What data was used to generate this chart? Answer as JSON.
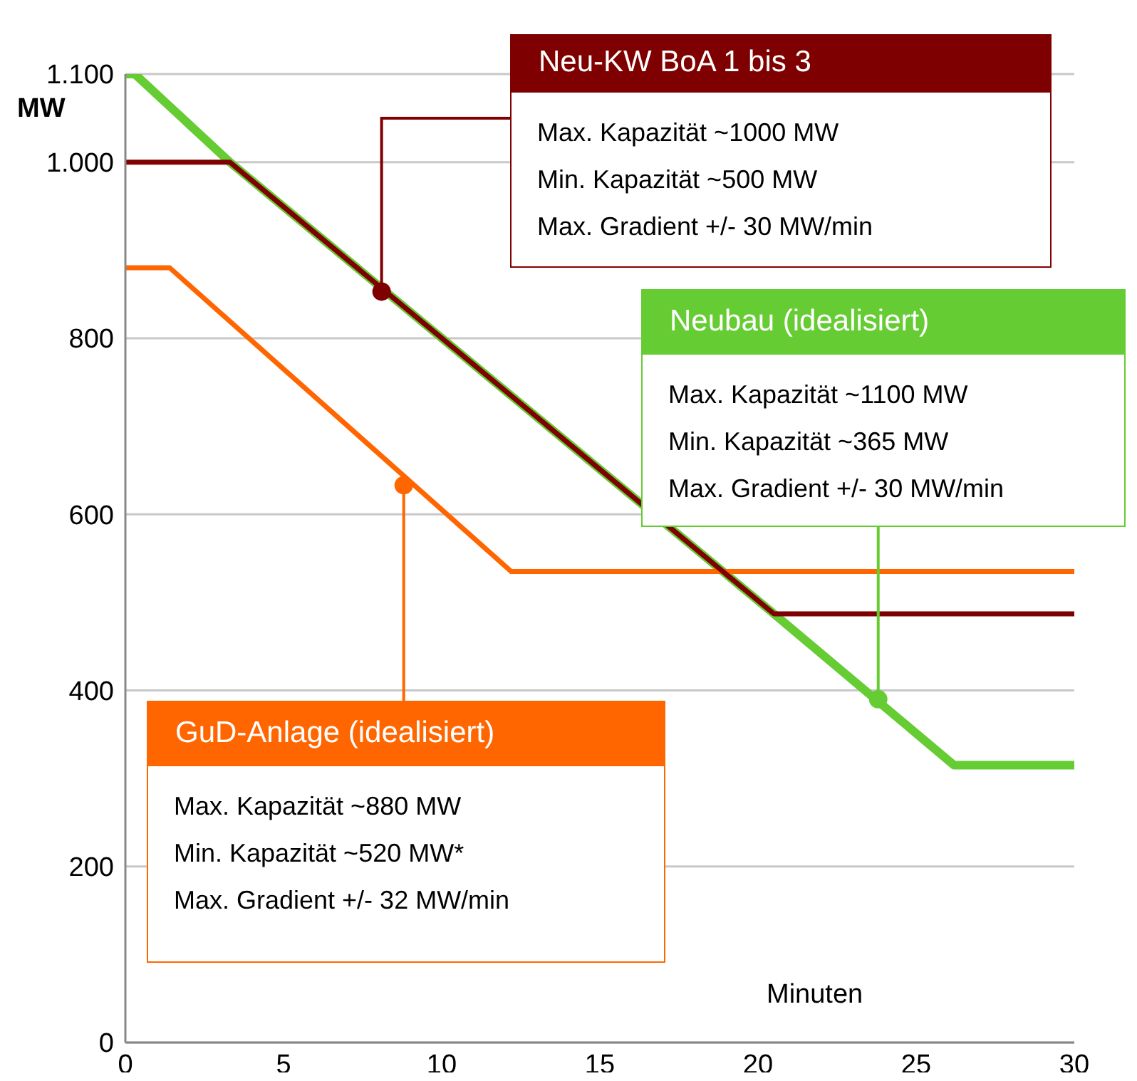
{
  "chart_data": {
    "type": "line",
    "xlabel": "Minuten",
    "ylabel": "MW",
    "xlim": [
      0,
      30
    ],
    "xticks": [
      0,
      5,
      10,
      15,
      20,
      25,
      30
    ],
    "ylim": [
      0,
      1100
    ],
    "yticks": [
      0,
      200,
      400,
      600,
      800,
      {
        "value": 1000,
        "label": "1.000"
      },
      {
        "value": 1100,
        "label": "1.100"
      }
    ],
    "grid": "y",
    "marker": "none",
    "series": [
      {
        "name": "Neu-KW BoA 1 bis 3",
        "color": "#7f0000",
        "x": [
          0,
          3.3,
          20.5,
          30
        ],
        "values": [
          1000,
          1000,
          487,
          487
        ]
      },
      {
        "name": "Neubau (idealisiert)",
        "color": "#66cc33",
        "x": [
          0,
          0.3,
          3.3,
          20.5,
          26.2,
          30
        ],
        "values": [
          1100,
          1100,
          1000,
          487,
          315,
          315
        ]
      },
      {
        "name": "GuD-Anlage (idealisiert)",
        "color": "#ff6600",
        "x": [
          0,
          1.4,
          12.2,
          30
        ],
        "values": [
          880,
          880,
          535,
          535
        ]
      },
      {
        "type": "scatter",
        "marker": "circle",
        "color": "#7f0000",
        "x": [
          8.1
        ],
        "values": [
          853
        ]
      },
      {
        "type": "scatter",
        "marker": "circle",
        "color": "#66cc33",
        "x": [
          23.8
        ],
        "values": [
          390
        ]
      },
      {
        "type": "scatter",
        "marker": "circle",
        "color": "#ff6600",
        "x": [
          8.8
        ],
        "values": [
          633
        ]
      }
    ],
    "annotations": [
      {
        "text": "Max. Kapazität ~1000 MW\nMin. Kapazität ~500 MW\nMax. Gradient +/- 30 MW/min",
        "x": 8.1,
        "y": 853
      },
      {
        "text": "Max. Kapazität ~1100 MW\nMin. Kapazität ~365 MW\nMax. Gradient +/- 30 MW/min",
        "x": 23.8,
        "y": 390
      },
      {
        "text": "Max. Kapazität ~880 MW\nMin. Kapazität ~520 MW*\nMax. Gradient +/- 32 MW/min",
        "x": 8.8,
        "y": 633
      }
    ]
  }
}
